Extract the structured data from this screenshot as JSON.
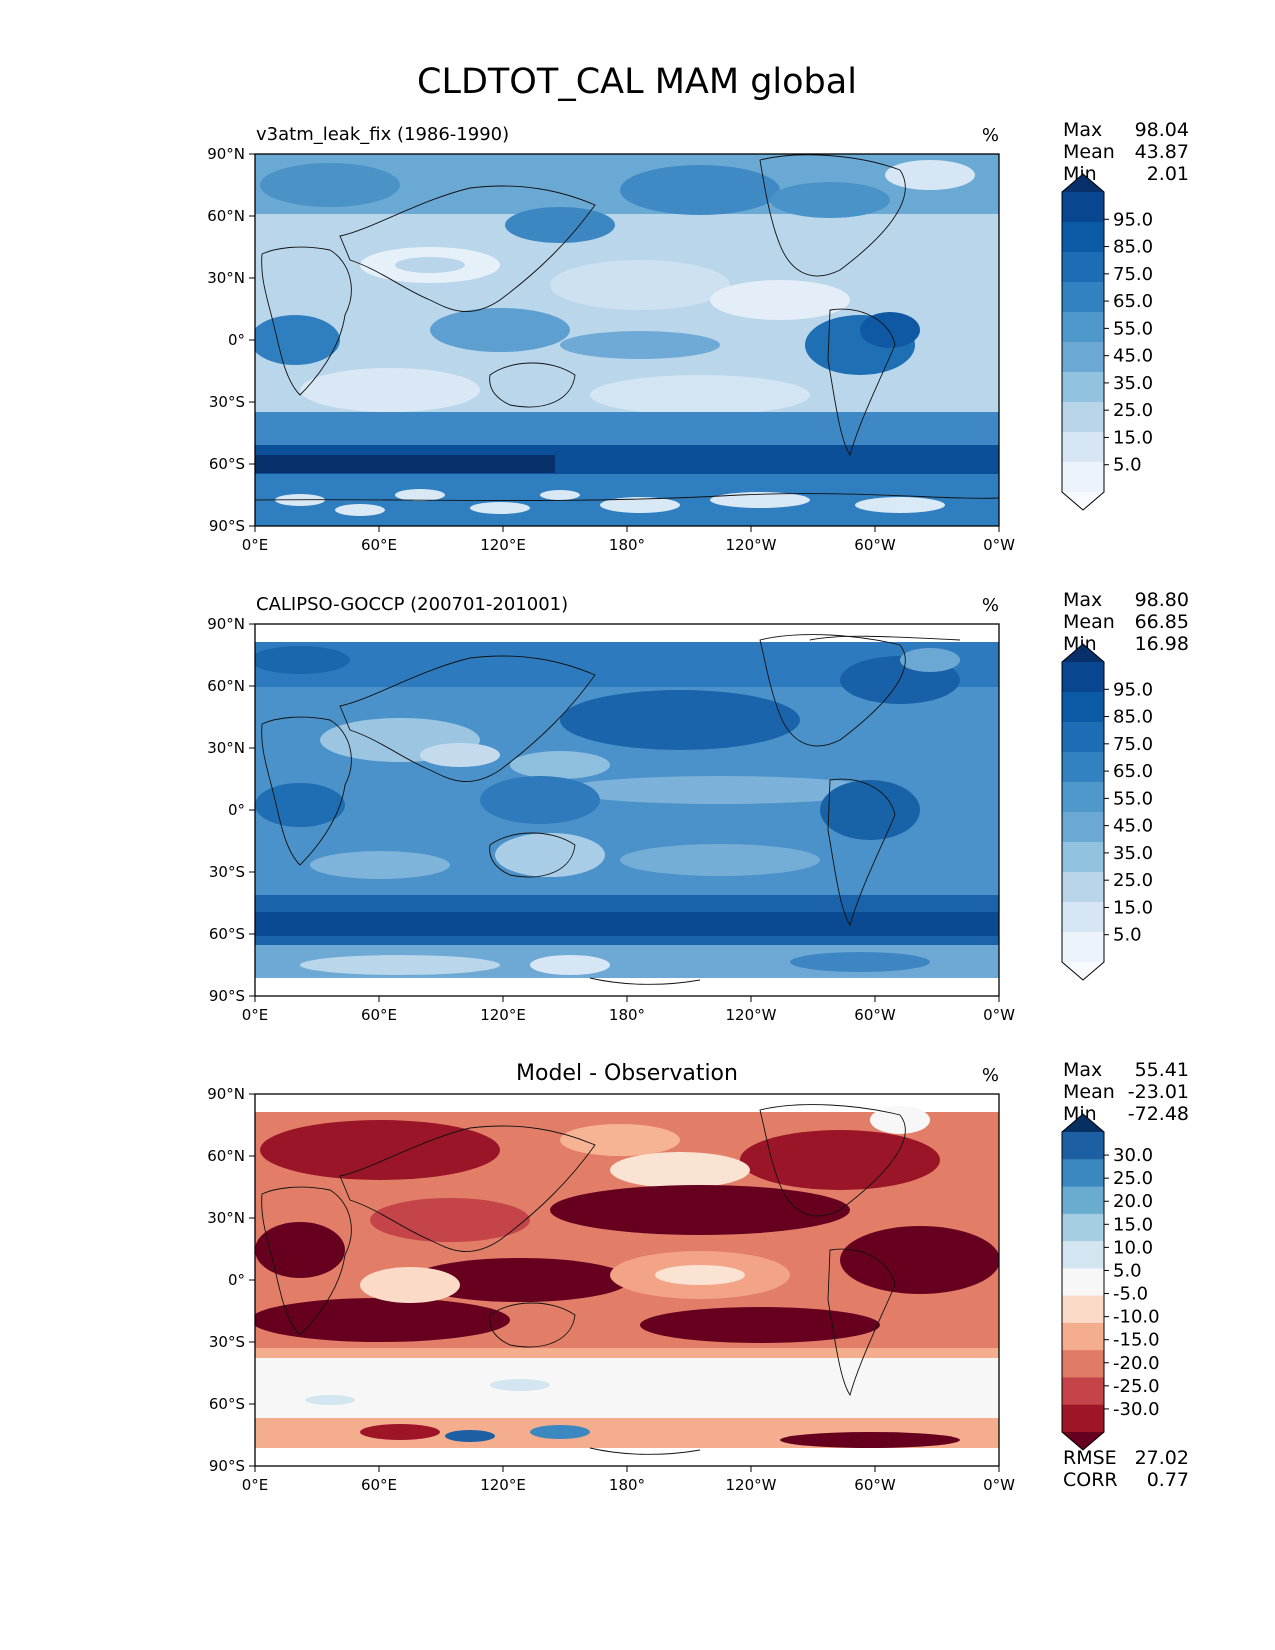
{
  "title": "CLDTOT_CAL MAM global",
  "panels": [
    {
      "left_title": "v3atm_leak_fix (1986-1990)",
      "center_title": "",
      "units": "%",
      "stats": [
        {
          "label": "Max",
          "value": "98.04"
        },
        {
          "label": "Mean",
          "value": "43.87"
        },
        {
          "label": "Min",
          "value": "2.01"
        }
      ],
      "colorbar_labels": [
        "95.0",
        "85.0",
        "75.0",
        "65.0",
        "55.0",
        "45.0",
        "35.0",
        "25.0",
        "15.0",
        "5.0"
      ],
      "colorbar_colors": [
        "#08306b",
        "#08468f",
        "#0b5aa6",
        "#1c6db4",
        "#3282c1",
        "#4e98cb",
        "#6ba9d4",
        "#91c2df",
        "#b8d5ea",
        "#d6e6f4",
        "#ecf3fb",
        "#f7fbff"
      ],
      "extra_stats": []
    },
    {
      "left_title": "CALIPSO-GOCCP (200701-201001)",
      "center_title": "",
      "units": "%",
      "stats": [
        {
          "label": "Max",
          "value": "98.80"
        },
        {
          "label": "Mean",
          "value": "66.85"
        },
        {
          "label": "Min",
          "value": "16.98"
        }
      ],
      "colorbar_labels": [
        "95.0",
        "85.0",
        "75.0",
        "65.0",
        "55.0",
        "45.0",
        "35.0",
        "25.0",
        "15.0",
        "5.0"
      ],
      "colorbar_colors": [
        "#08306b",
        "#08468f",
        "#0b5aa6",
        "#1c6db4",
        "#3282c1",
        "#4e98cb",
        "#6ba9d4",
        "#91c2df",
        "#b8d5ea",
        "#d6e6f4",
        "#ecf3fb",
        "#f7fbff"
      ],
      "extra_stats": []
    },
    {
      "left_title": "",
      "center_title": "Model - Observation",
      "units": "%",
      "stats": [
        {
          "label": "Max",
          "value": "55.41"
        },
        {
          "label": "Mean",
          "value": "-23.01"
        },
        {
          "label": "Min",
          "value": "-72.48"
        }
      ],
      "colorbar_labels": [
        "30.0",
        "25.0",
        "20.0",
        "15.0",
        "10.0",
        "5.0",
        "-5.0",
        "-10.0",
        "-15.0",
        "-20.0",
        "-25.0",
        "-30.0"
      ],
      "colorbar_colors": [
        "#053061",
        "#1d5fa3",
        "#3b87c0",
        "#6aacd0",
        "#a5cee3",
        "#d3e5f0",
        "#f7f7f7",
        "#fbdbc8",
        "#f5ae8d",
        "#e07b66",
        "#c4444a",
        "#9f1528",
        "#67001f"
      ],
      "extra_stats": [
        {
          "label": "RMSE",
          "value": "27.02"
        },
        {
          "label": "CORR",
          "value": "0.77"
        }
      ]
    }
  ],
  "chart_data": [
    {
      "type": "heatmap",
      "title": "v3atm_leak_fix (1986-1990)",
      "variable": "CLDTOT_CAL",
      "units": "%",
      "x_ticks": [
        "0°E",
        "60°E",
        "120°E",
        "180°",
        "120°W",
        "60°W",
        "0°W"
      ],
      "y_ticks": [
        "90°N",
        "60°N",
        "30°N",
        "0°",
        "30°S",
        "60°S",
        "90°S"
      ],
      "xlim": [
        0,
        360
      ],
      "ylim": [
        -90,
        90
      ],
      "color_levels": [
        5,
        15,
        25,
        35,
        45,
        55,
        65,
        75,
        85,
        95
      ],
      "colormap": "Blues",
      "stats": {
        "max": 98.04,
        "mean": 43.87,
        "min": 2.01
      }
    },
    {
      "type": "heatmap",
      "title": "CALIPSO-GOCCP (200701-201001)",
      "variable": "CLDTOT_CAL",
      "units": "%",
      "x_ticks": [
        "0°E",
        "60°E",
        "120°E",
        "180°",
        "120°W",
        "60°W",
        "0°W"
      ],
      "y_ticks": [
        "90°N",
        "60°N",
        "30°N",
        "0°",
        "30°S",
        "60°S",
        "90°S"
      ],
      "xlim": [
        0,
        360
      ],
      "ylim": [
        -90,
        90
      ],
      "color_levels": [
        5,
        15,
        25,
        35,
        45,
        55,
        65,
        75,
        85,
        95
      ],
      "colormap": "Blues",
      "stats": {
        "max": 98.8,
        "mean": 66.85,
        "min": 16.98
      }
    },
    {
      "type": "heatmap",
      "title": "Model - Observation",
      "variable": "CLDTOT_CAL",
      "units": "%",
      "x_ticks": [
        "0°E",
        "60°E",
        "120°E",
        "180°",
        "120°W",
        "60°W",
        "0°W"
      ],
      "y_ticks": [
        "90°N",
        "60°N",
        "30°N",
        "0°",
        "30°S",
        "60°S",
        "90°S"
      ],
      "xlim": [
        0,
        360
      ],
      "ylim": [
        -90,
        90
      ],
      "color_levels": [
        -30,
        -25,
        -20,
        -15,
        -10,
        -5,
        5,
        10,
        15,
        20,
        25,
        30
      ],
      "colormap": "RdBu",
      "stats": {
        "max": 55.41,
        "mean": -23.01,
        "min": -72.48,
        "rmse": 27.02,
        "corr": 0.77
      }
    }
  ]
}
